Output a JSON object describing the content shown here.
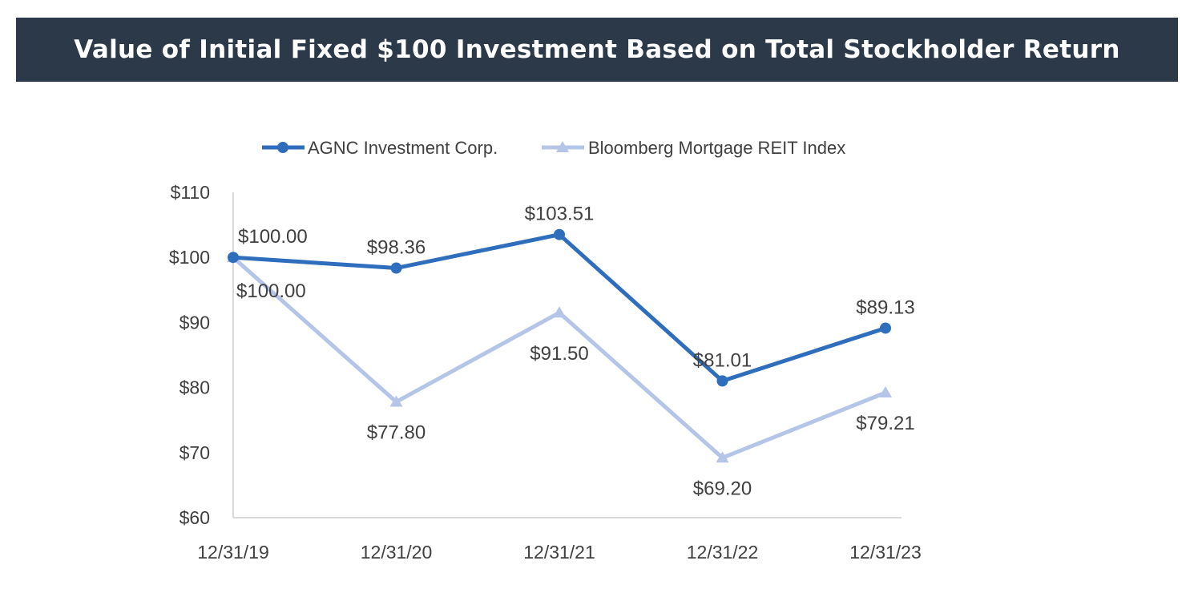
{
  "chart_data": {
    "type": "line",
    "title": "Value of Initial Fixed $100 Investment Based on Total Stockholder Return",
    "categories": [
      "12/31/19",
      "12/31/20",
      "12/31/21",
      "12/31/22",
      "12/31/23"
    ],
    "series": [
      {
        "name": "AGNC Investment Corp.",
        "values": [
          100.0,
          98.36,
          103.51,
          81.01,
          89.13
        ],
        "labels": [
          "$100.00",
          "$98.36",
          "$103.51",
          "$81.01",
          "$89.13"
        ],
        "color": "#2e6ebd",
        "marker": "circle"
      },
      {
        "name": "Bloomberg Mortgage REIT Index",
        "values": [
          100.0,
          77.8,
          91.5,
          69.2,
          79.21
        ],
        "labels": [
          "$100.00",
          "$77.80",
          "$91.50",
          "$69.20",
          "$79.21"
        ],
        "color": "#b4c5e8",
        "marker": "triangle"
      }
    ],
    "yticks": [
      "$60",
      "$70",
      "$80",
      "$90",
      "$100",
      "$110"
    ],
    "ylim": [
      60,
      110
    ],
    "grid": false,
    "legend": "top"
  }
}
